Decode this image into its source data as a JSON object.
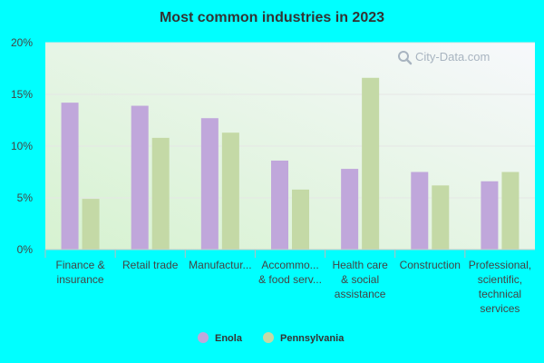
{
  "colors": {
    "page_background": "#00FFFF",
    "plot_top": "#f7f8fc",
    "plot_bottom": "#d6f2d0",
    "series_enola": "#c0a7db",
    "series_pennsylvania": "#c4d9a6",
    "gridline": "#e6e6e6",
    "axis_text": "#444444",
    "title_text": "#333333",
    "watermark_text": "#a8b4c0"
  },
  "watermark": {
    "text": "City-Data.com",
    "icon": "magnifier-icon"
  },
  "chart_data": {
    "type": "bar",
    "title": "Most common industries in 2023",
    "xlabel": "",
    "ylabel": "",
    "ylim": [
      0,
      20
    ],
    "yticks": [
      0,
      5,
      10,
      15,
      20
    ],
    "ytick_labels": [
      "0%",
      "5%",
      "10%",
      "15%",
      "20%"
    ],
    "grid": true,
    "legend_position": "bottom-center",
    "categories": [
      [
        "Finance &",
        "insurance"
      ],
      [
        "Retail trade"
      ],
      [
        "Manufactur..."
      ],
      [
        "Accommo...",
        "& food serv..."
      ],
      [
        "Health care",
        "& social",
        "assistance"
      ],
      [
        "Construction"
      ],
      [
        "Professional,",
        "scientific,",
        "technical",
        "services"
      ]
    ],
    "series": [
      {
        "name": "Enola",
        "values": [
          14.2,
          13.9,
          12.7,
          8.6,
          7.8,
          7.5,
          6.6
        ]
      },
      {
        "name": "Pennsylvania",
        "values": [
          4.9,
          10.8,
          11.3,
          5.8,
          16.6,
          6.2,
          7.5
        ]
      }
    ]
  }
}
